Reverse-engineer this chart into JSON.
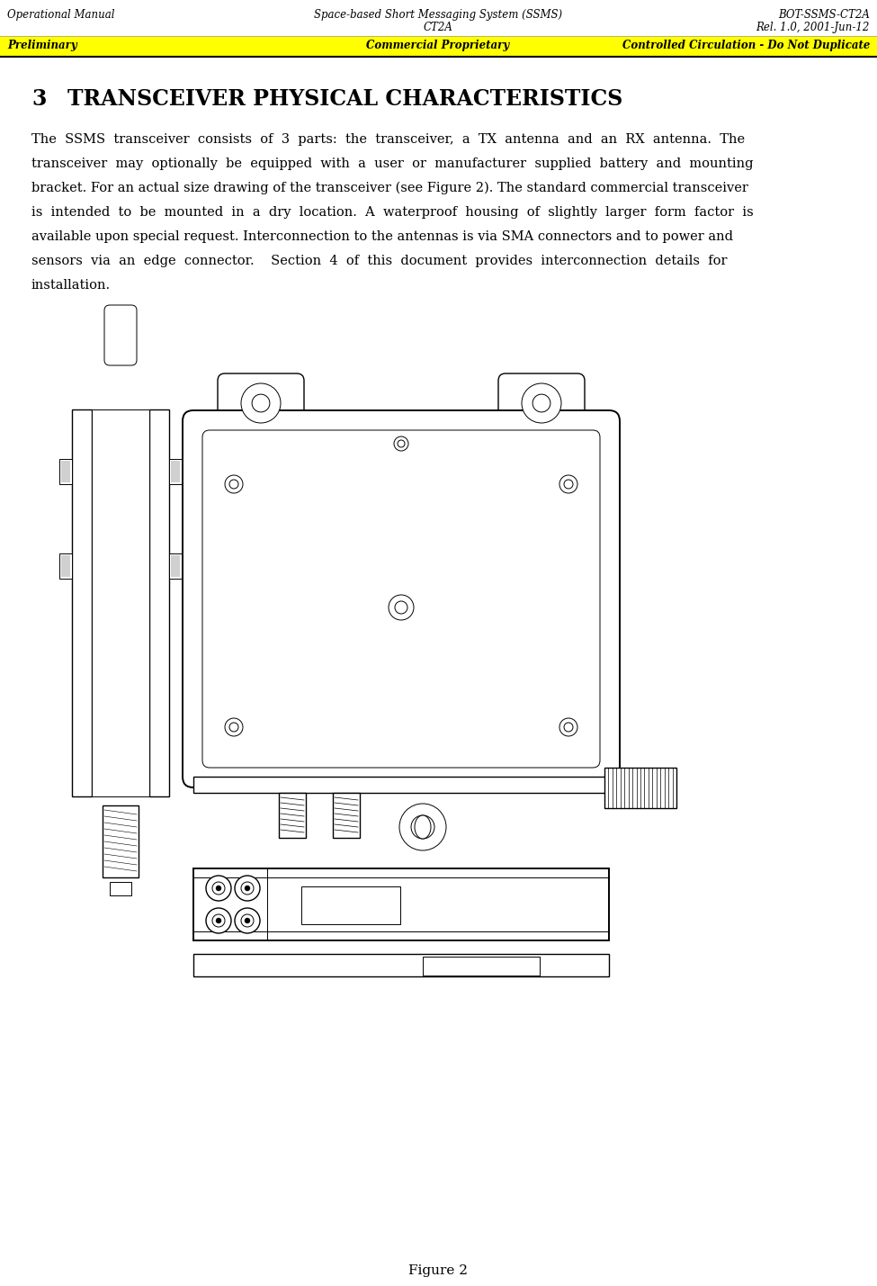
{
  "header_left": "Operational Manual",
  "header_center": "Space-based Short Messaging System (SSMS)",
  "header_center2": "CT2A",
  "header_right": "BOT-SSMS-CT2A",
  "header_right2": "Rel. 1.0, 2001-Jun-12",
  "banner_left": "Preliminary",
  "banner_center": "Commercial Proprietary",
  "banner_right": "Controlled Circulation - Do Not Duplicate",
  "banner_color": "#FFFF00",
  "section_number": "3",
  "section_title": "TRANSCEIVER PHYSICAL CHARACTERISTICS",
  "body_lines": [
    "The  SSMS  transceiver  consists  of  3  parts:  the  transceiver,  a  TX  antenna  and  an  RX  antenna.  The",
    "transceiver  may  optionally  be  equipped  with  a  user  or  manufacturer  supplied  battery  and  mounting",
    "bracket. For an actual size drawing of the transceiver (see Figure 2). The standard commercial transceiver",
    "is  intended  to  be  mounted  in  a  dry  location.  A  waterproof  housing  of  slightly  larger  form  factor  is",
    "available upon special request. Interconnection to the antennas is via SMA connectors and to power and",
    "sensors  via  an  edge  connector.    Section  4  of  this  document  provides  interconnection  details  for",
    "installation."
  ],
  "figure_label": "Figure 2",
  "bg_color": "#ffffff",
  "text_color": "#000000"
}
